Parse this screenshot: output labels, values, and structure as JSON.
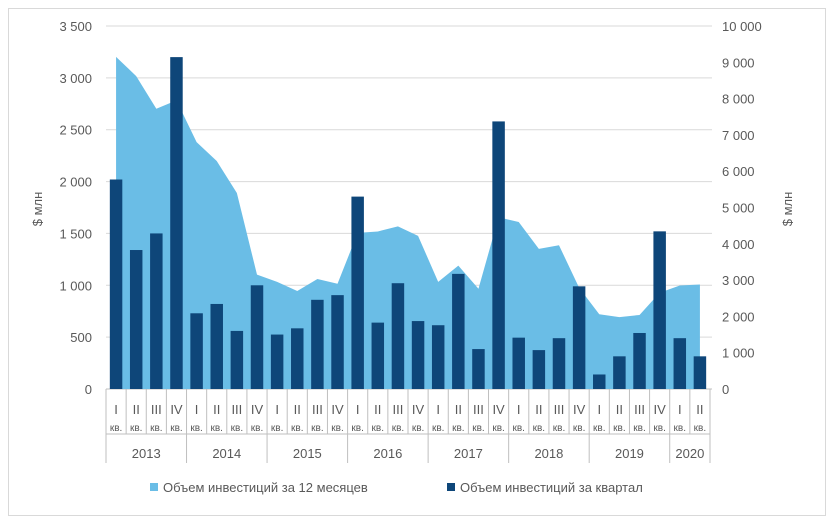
{
  "chart_data": {
    "type": "bar+area",
    "left_axis": {
      "label": "$ млн",
      "ylim": [
        0,
        3500
      ],
      "ticks": [
        "0",
        "500",
        "1 000",
        "1 500",
        "2 000",
        "2 500",
        "3 000",
        "3 500"
      ],
      "tick_values": [
        0,
        500,
        1000,
        1500,
        2000,
        2500,
        3000,
        3500
      ]
    },
    "right_axis": {
      "label": "$ млн",
      "ylim": [
        0,
        10000
      ],
      "ticks": [
        "0",
        "1 000",
        "2 000",
        "3 000",
        "4 000",
        "5 000",
        "6 000",
        "7 000",
        "8 000",
        "9 000",
        "10 000"
      ],
      "tick_values": [
        0,
        1000,
        2000,
        3000,
        4000,
        5000,
        6000,
        7000,
        8000,
        9000,
        10000
      ]
    },
    "quarter_roman": [
      "I",
      "II",
      "III",
      "IV"
    ],
    "quarter_suffix": "кв.",
    "years": [
      {
        "label": "2013",
        "quarters": 4
      },
      {
        "label": "2014",
        "quarters": 4
      },
      {
        "label": "2015",
        "quarters": 4
      },
      {
        "label": "2016",
        "quarters": 4
      },
      {
        "label": "2017",
        "quarters": 4
      },
      {
        "label": "2018",
        "quarters": 4
      },
      {
        "label": "2019",
        "quarters": 4
      },
      {
        "label": "2020",
        "quarters": 2
      }
    ],
    "series": [
      {
        "name": "Объем инвестиций за 12 месяцев",
        "type": "area",
        "axis": "right",
        "color": "#6abde6",
        "values": [
          9150,
          8620,
          7720,
          7950,
          6800,
          6280,
          5400,
          3150,
          2950,
          2700,
          3030,
          2900,
          4300,
          4340,
          4480,
          4220,
          2950,
          3400,
          2760,
          4730,
          4600,
          3860,
          3960,
          2790,
          2060,
          1980,
          2040,
          2650,
          2850,
          2880
        ]
      },
      {
        "name": "Объем инвестиций за квартал",
        "type": "bar",
        "axis": "left",
        "color": "#0e4679",
        "values": [
          2020,
          1340,
          1500,
          3200,
          730,
          820,
          560,
          1000,
          525,
          585,
          860,
          905,
          1855,
          640,
          1020,
          655,
          615,
          1110,
          385,
          2580,
          495,
          375,
          490,
          990,
          140,
          315,
          540,
          1520,
          490,
          315
        ]
      }
    ],
    "legend_position": "bottom",
    "grid": true
  }
}
